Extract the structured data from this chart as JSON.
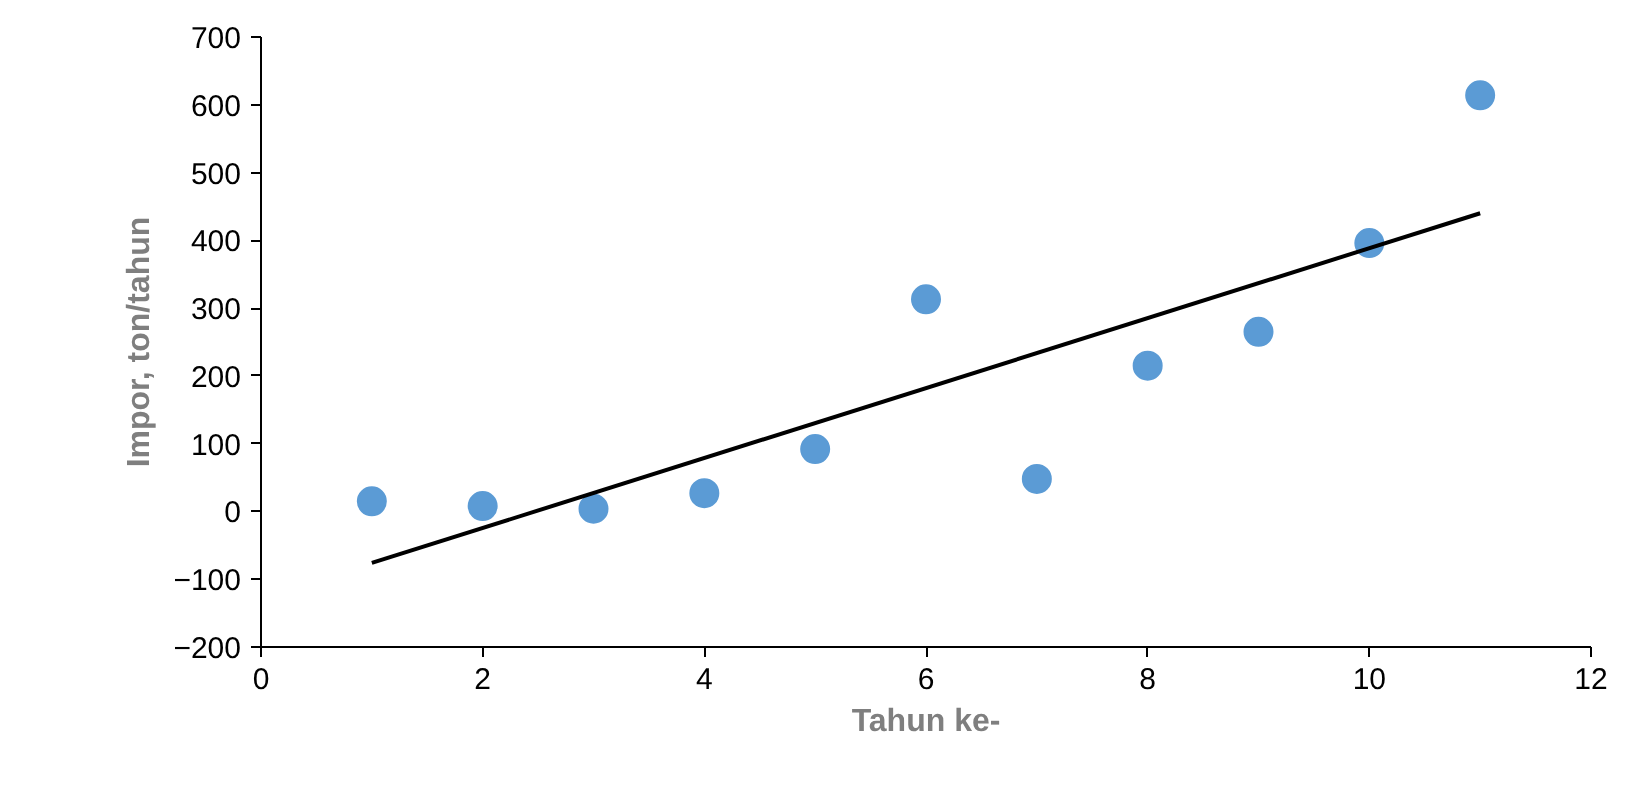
{
  "chart_data": {
    "type": "scatter",
    "xlabel": "Tahun ke-",
    "ylabel": "Impor, ton/tahun",
    "x": [
      1,
      2,
      3,
      4,
      5,
      6,
      7,
      8,
      9,
      10,
      11
    ],
    "series": [
      {
        "color": "#5b9bd5",
        "marker": "circle",
        "values": [
          15,
          8,
          4,
          27,
          92,
          313,
          48,
          215,
          265,
          396,
          614
        ]
      },
      {
        "type": "line",
        "color": "#000000",
        "x": [
          1,
          11
        ],
        "values": [
          -76,
          440
        ]
      }
    ],
    "xlim": [
      0,
      12
    ],
    "xticks": [
      0,
      2,
      4,
      6,
      8,
      10,
      12
    ],
    "ylim": [
      -200,
      700
    ],
    "yticks": [
      -200,
      -100,
      0,
      100,
      200,
      300,
      400,
      500,
      600,
      700
    ],
    "grid": false
  }
}
